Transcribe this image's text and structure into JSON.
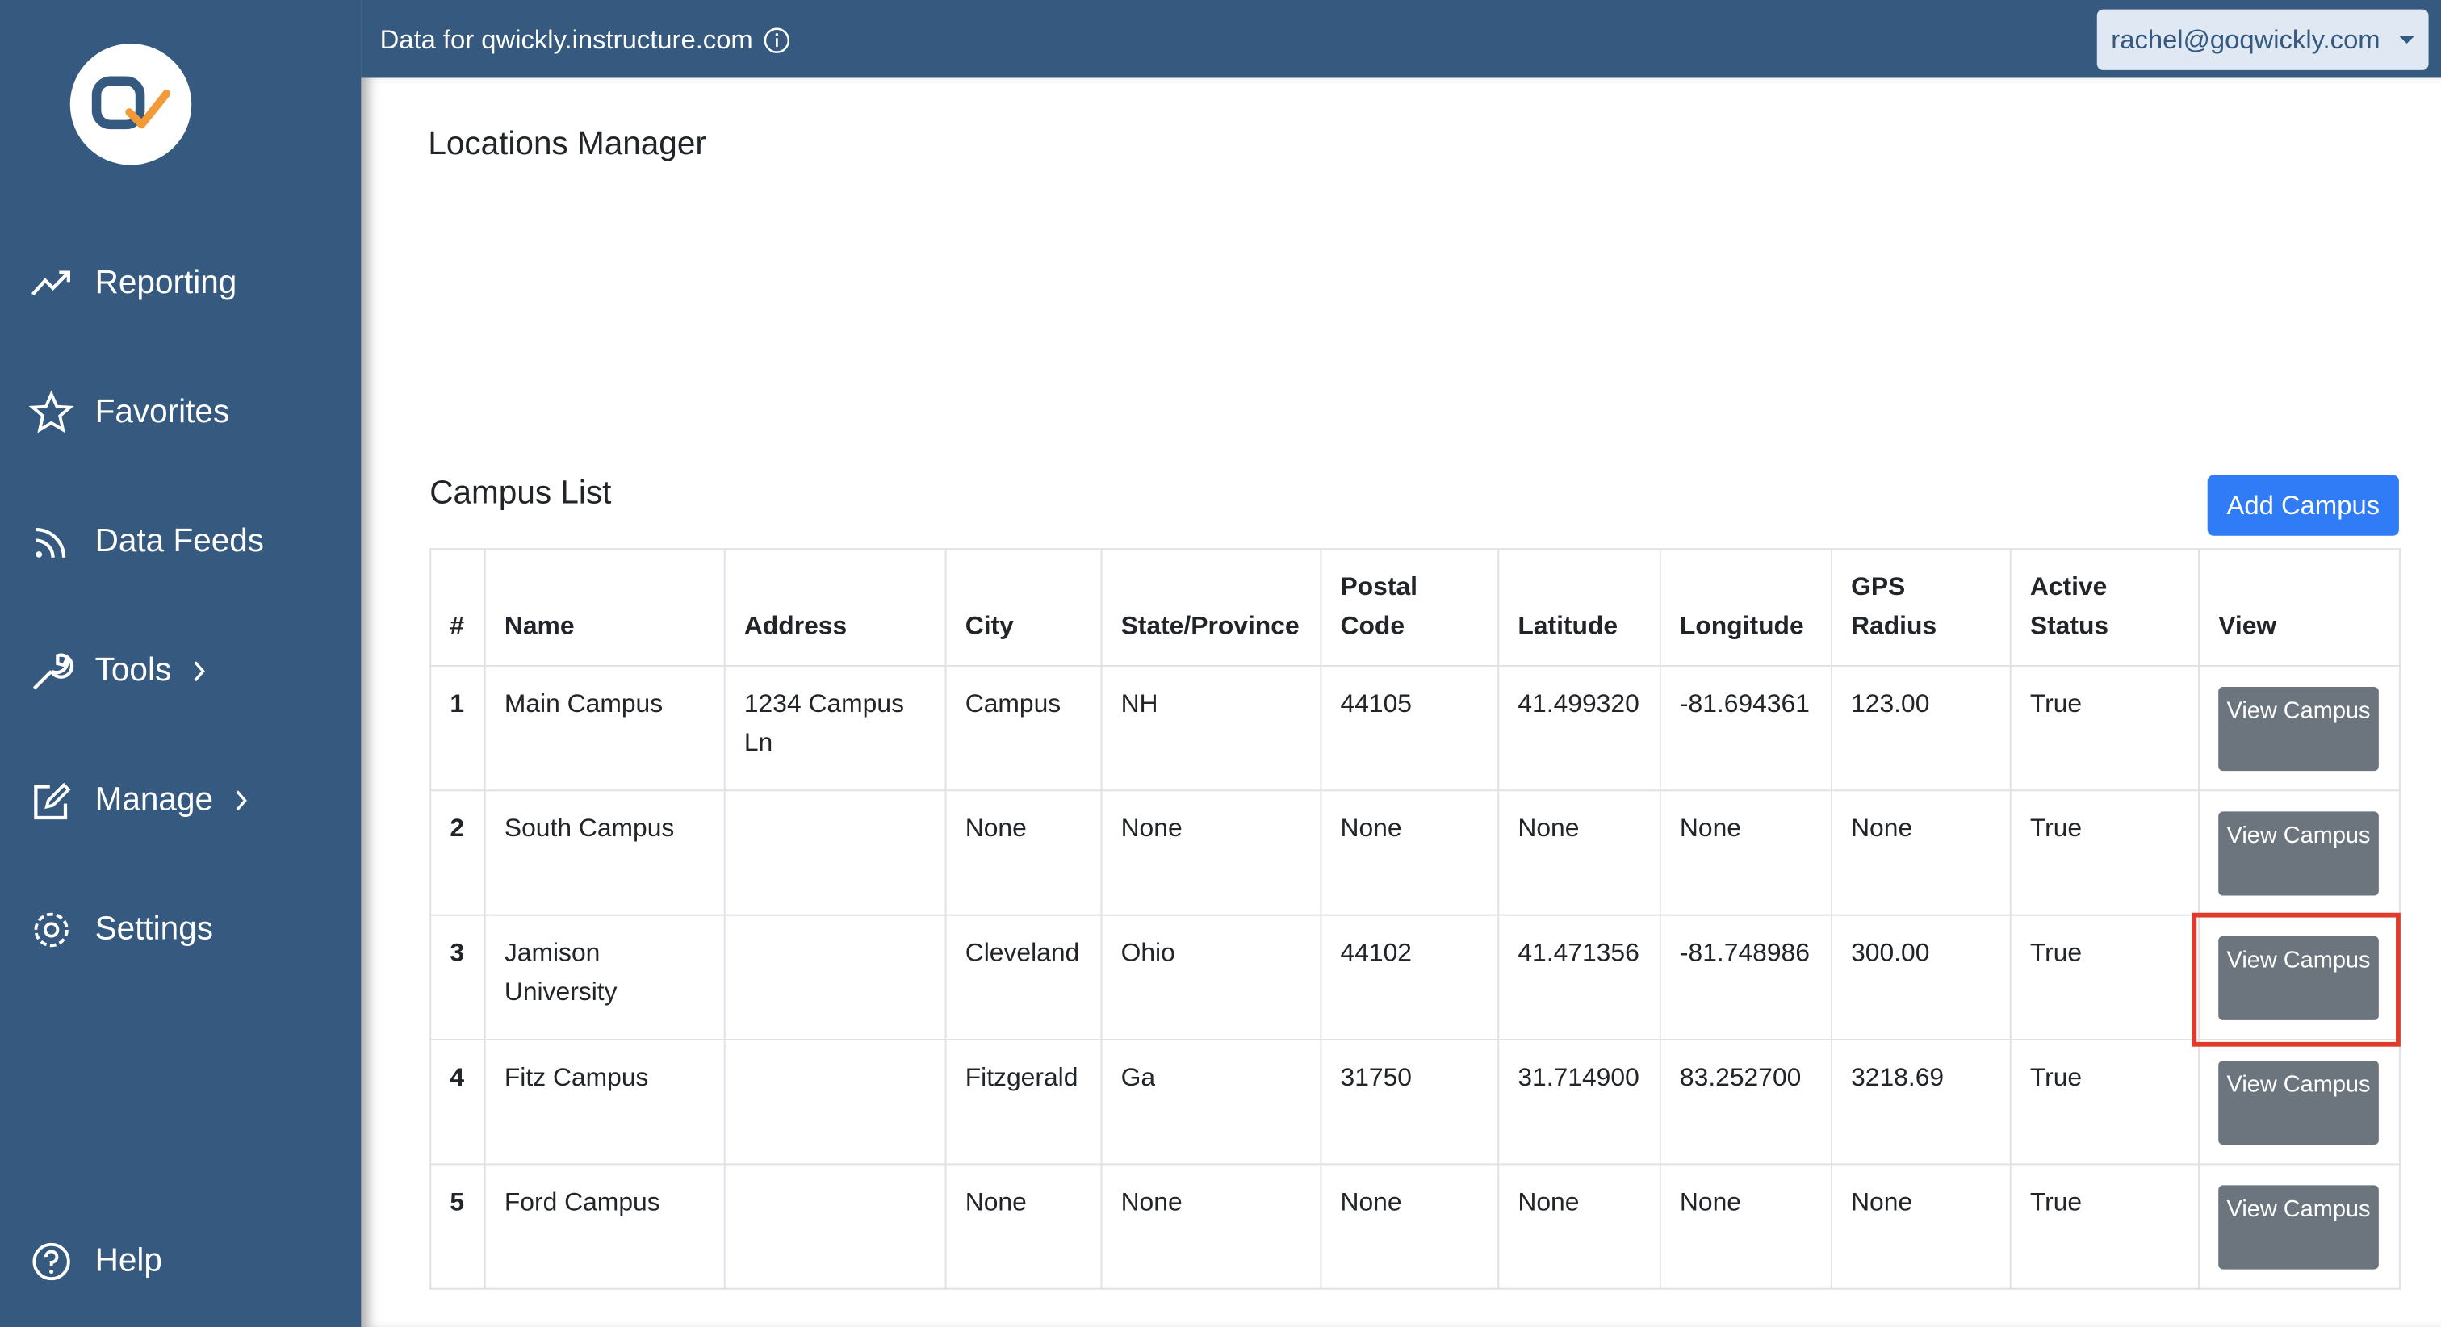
{
  "header": {
    "domain_text": "Data for qwickly.instructure.com",
    "user": "rachel@goqwickly.com"
  },
  "sidebar": {
    "items": [
      "Reporting",
      "Favorites",
      "Data Feeds",
      "Tools",
      "Manage",
      "Settings"
    ],
    "help": "Help"
  },
  "page": {
    "title": "Locations Manager",
    "section_title": "Campus List",
    "add_button": "Add Campus"
  },
  "table": {
    "columns": [
      "#",
      "Name",
      "Address",
      "City",
      "State/Province",
      "Postal Code",
      "Latitude",
      "Longitude",
      "GPS Radius",
      "Active Status",
      "View"
    ],
    "rows": [
      [
        "1",
        "Main Campus",
        "1234 Campus Ln",
        "Campus",
        "NH",
        "44105",
        "41.499320",
        "-81.694361",
        "123.00",
        "True"
      ],
      [
        "2",
        "South Campus",
        "",
        "None",
        "None",
        "None",
        "None",
        "None",
        "None",
        "True"
      ],
      [
        "3",
        "Jamison University",
        "",
        "Cleveland",
        "Ohio",
        "44102",
        "41.471356",
        "-81.748986",
        "300.00",
        "True"
      ],
      [
        "4",
        "Fitz Campus",
        "",
        "Fitzgerald",
        "Ga",
        "31750",
        "31.714900",
        "83.252700",
        "3218.69",
        "True"
      ],
      [
        "5",
        "Ford Campus",
        "",
        "None",
        "None",
        "None",
        "None",
        "None",
        "None",
        "True"
      ]
    ],
    "view_button": "View Campus"
  }
}
